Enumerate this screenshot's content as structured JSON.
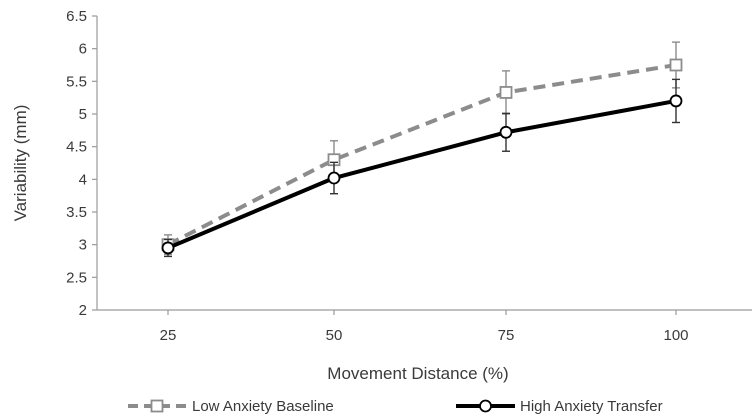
{
  "chart_data": {
    "type": "line",
    "xlabel": "Movement Distance (%)",
    "ylabel": "Variability (mm)",
    "categories": [
      "25",
      "50",
      "75",
      "100"
    ],
    "ylim": [
      2,
      6.5
    ],
    "yticks": [
      "2",
      "2.5",
      "3",
      "3.5",
      "4",
      "4.5",
      "5",
      "5.5",
      "6",
      "6.5"
    ],
    "grid": false,
    "legend_position": "bottom",
    "series": [
      {
        "name": "Low Anxiety Baseline",
        "values": [
          3.0,
          4.3,
          5.33,
          5.75
        ],
        "error": [
          0.15,
          0.29,
          0.33,
          0.35
        ],
        "line_color": "#8c8c8c",
        "line_style": "dashed",
        "marker": "square"
      },
      {
        "name": "High Anxiety Transfer",
        "values": [
          2.95,
          4.02,
          4.72,
          5.2
        ],
        "error": [
          0.13,
          0.24,
          0.29,
          0.33
        ],
        "line_color": "#000000",
        "line_style": "solid",
        "marker": "circle"
      }
    ]
  }
}
